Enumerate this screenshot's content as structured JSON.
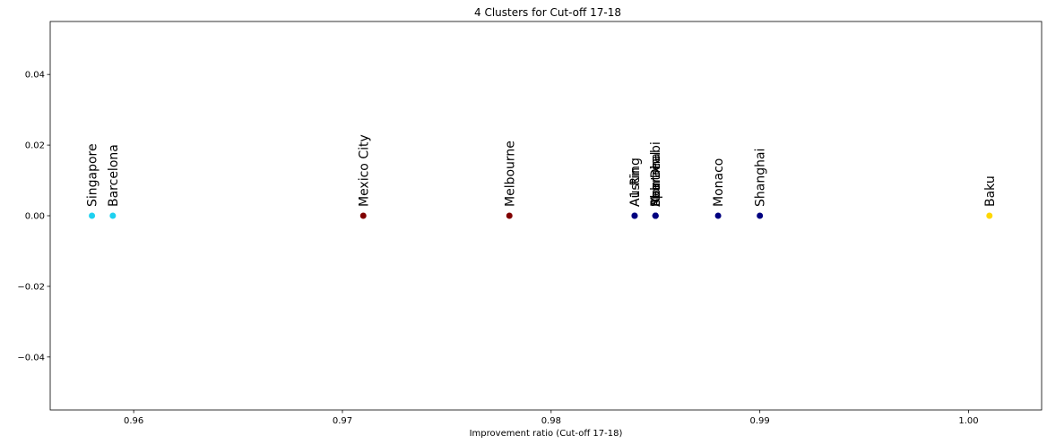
{
  "chart_data": {
    "type": "scatter",
    "title": "4 Clusters for Cut-off 17-18",
    "xlabel": "Improvement ratio (Cut-off 17-18)",
    "ylabel": "",
    "xlim": [
      0.956,
      1.0035
    ],
    "ylim": [
      -0.055,
      0.055
    ],
    "x_ticks": [
      {
        "value": 0.96,
        "label": "0.96"
      },
      {
        "value": 0.97,
        "label": "0.97"
      },
      {
        "value": 0.98,
        "label": "0.98"
      },
      {
        "value": 0.99,
        "label": "0.99"
      },
      {
        "value": 1.0,
        "label": "1.00"
      }
    ],
    "y_ticks": [
      {
        "value": 0.04,
        "label": "0.04"
      },
      {
        "value": 0.02,
        "label": "0.02"
      },
      {
        "value": 0.0,
        "label": "0.00"
      },
      {
        "value": -0.02,
        "label": "−0.02"
      },
      {
        "value": -0.04,
        "label": "−0.04"
      }
    ],
    "grid": false,
    "legend": "none",
    "points": [
      {
        "label": "Singapore",
        "x": 0.958,
        "y": 0,
        "color": "#1ed1f0"
      },
      {
        "label": "Barcelona",
        "x": 0.959,
        "y": 0,
        "color": "#1ed1f0"
      },
      {
        "label": "Mexico City",
        "x": 0.971,
        "y": 0,
        "color": "#800000"
      },
      {
        "label": "Melbourne",
        "x": 0.978,
        "y": 0,
        "color": "#800000"
      },
      {
        "label": "Austin",
        "x": 0.984,
        "y": 0,
        "color": "#000080"
      },
      {
        "label": "A1-Ring",
        "x": 0.984,
        "y": 0,
        "color": "#000080"
      },
      {
        "label": "Abu Dhabi",
        "x": 0.985,
        "y": 0,
        "color": "#000080"
      },
      {
        "label": "Bahrain",
        "x": 0.985,
        "y": 0,
        "color": "#000080"
      },
      {
        "label": "Montreal",
        "x": 0.985,
        "y": 0,
        "color": "#000080"
      },
      {
        "label": "Spa",
        "x": 0.985,
        "y": 0,
        "color": "#000080"
      },
      {
        "label": "Monaco",
        "x": 0.988,
        "y": 0,
        "color": "#000080"
      },
      {
        "label": "Shanghai",
        "x": 0.99,
        "y": 0,
        "color": "#000080"
      },
      {
        "label": "Baku",
        "x": 1.001,
        "y": 0,
        "color": "#ffd700"
      }
    ]
  }
}
